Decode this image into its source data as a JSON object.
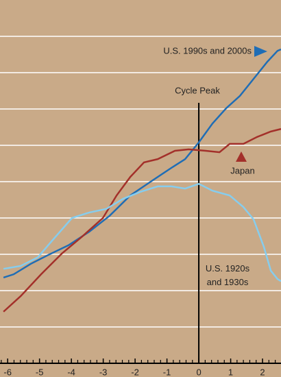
{
  "chart_data": {
    "type": "line",
    "annotation": "Cycle Peak",
    "xlim": [
      -6.24,
      2.58
    ],
    "xticks": [
      -6,
      -5,
      -4,
      -3,
      -2,
      -1,
      0,
      1,
      2
    ],
    "ylim": [
      0,
      10
    ],
    "grid_lines": [
      1,
      2,
      3,
      4,
      5,
      6,
      7,
      8,
      9
    ],
    "peak_x": 0,
    "series": [
      {
        "name": "U.S. 1990s and 2000s",
        "color": "#1f6db5",
        "x": [
          -6.13,
          -5.81,
          -5.27,
          -4.73,
          -4.09,
          -3.44,
          -2.8,
          -2.15,
          -1.51,
          -0.86,
          -0.43,
          0,
          0.43,
          0.86,
          1.29,
          1.72,
          2.15,
          2.47,
          2.58
        ],
        "values": [
          2.36,
          2.45,
          2.74,
          2.98,
          3.25,
          3.62,
          4.06,
          4.62,
          5.0,
          5.38,
          5.62,
          6.08,
          6.6,
          7.02,
          7.36,
          7.83,
          8.3,
          8.6,
          8.64
        ]
      },
      {
        "name": "Japan",
        "color": "#a3302a",
        "x": [
          -6.13,
          -5.59,
          -4.95,
          -4.3,
          -3.66,
          -3.01,
          -2.58,
          -2.15,
          -1.72,
          -1.29,
          -0.75,
          -0.32,
          0.22,
          0.65,
          0.97,
          1.4,
          1.83,
          2.26,
          2.58
        ],
        "values": [
          1.42,
          1.85,
          2.45,
          3.02,
          3.49,
          4.0,
          4.62,
          5.13,
          5.53,
          5.62,
          5.85,
          5.89,
          5.85,
          5.81,
          6.04,
          6.04,
          6.23,
          6.38,
          6.45
        ]
      },
      {
        "name": "U.S. 1920s and 1930s",
        "color": "#86cdee",
        "x": [
          -6.13,
          -5.59,
          -5.05,
          -4.62,
          -3.98,
          -3.44,
          -2.9,
          -2.37,
          -1.83,
          -1.29,
          -0.86,
          -0.43,
          0,
          0.43,
          0.97,
          1.4,
          1.72,
          2.04,
          2.26,
          2.47,
          2.58
        ],
        "values": [
          2.6,
          2.68,
          2.92,
          3.36,
          4.0,
          4.15,
          4.25,
          4.53,
          4.72,
          4.87,
          4.87,
          4.81,
          4.94,
          4.75,
          4.62,
          4.3,
          3.96,
          3.21,
          2.55,
          2.32,
          2.26
        ]
      }
    ]
  }
}
